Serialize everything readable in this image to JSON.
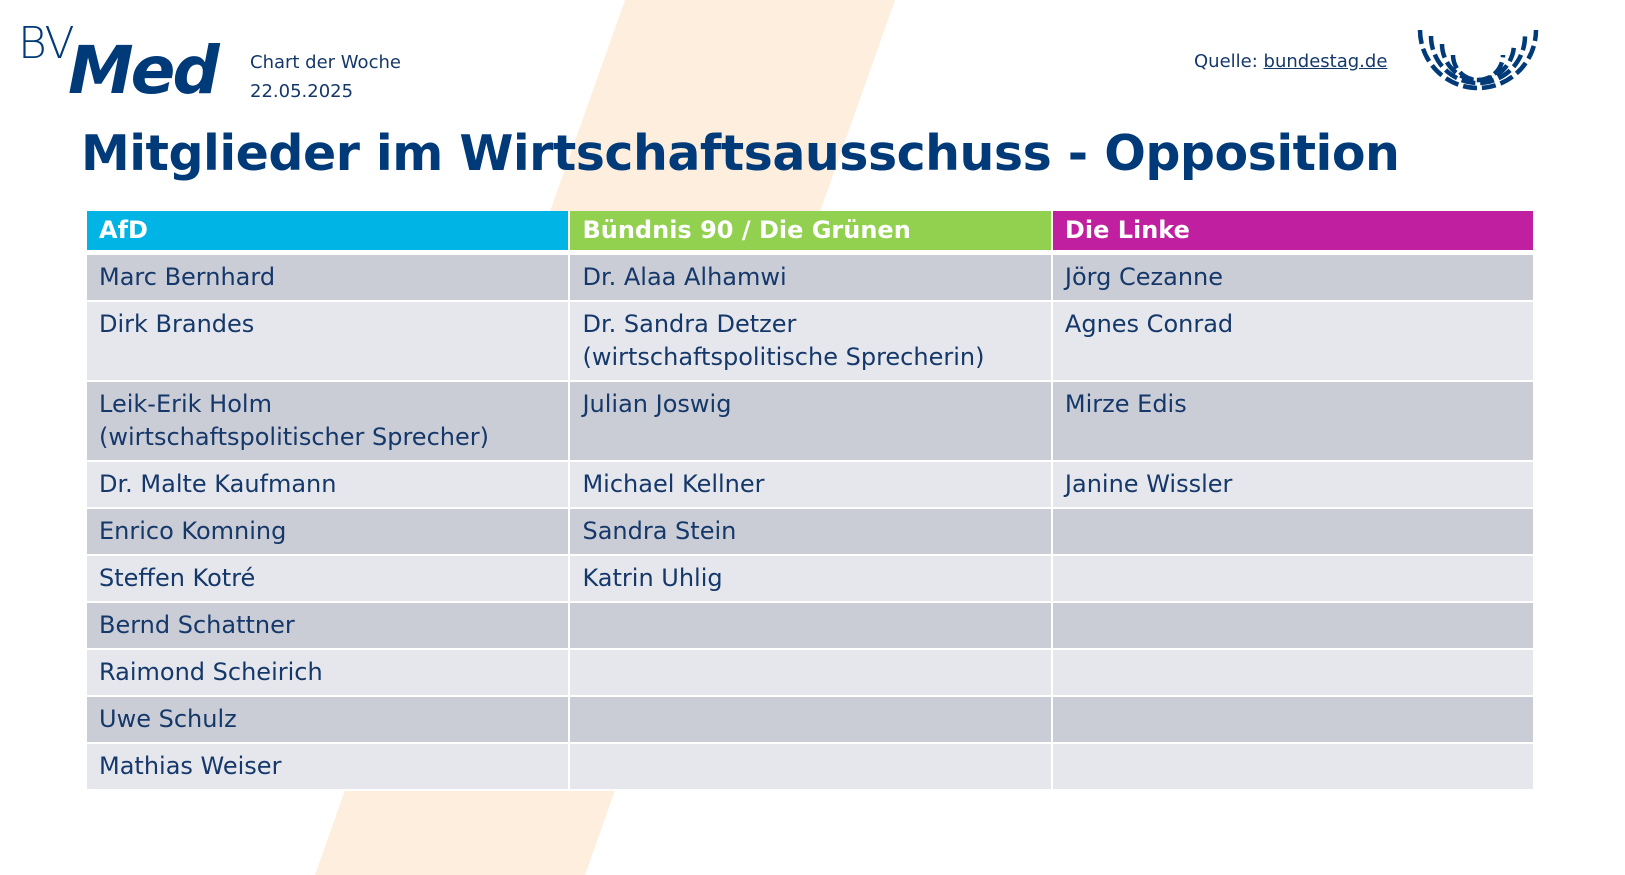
{
  "header": {
    "logo": "BVMed",
    "logo_bv": "BV",
    "logo_med": "Med",
    "series": "Chart der Woche",
    "date": "22.05.2025",
    "source_label": "Quelle:",
    "source_link": "bundestag.de"
  },
  "title": "Mitglieder im Wirtschaftsausschuss - Opposition",
  "colors": {
    "afd": "#00b4e6",
    "gruene": "#92d14f",
    "linke": "#c01fa0",
    "row_dark": "#cbcdd6",
    "row_light": "#e6e7ec",
    "accent_stripe": "#fdeedd"
  },
  "table": {
    "headers": [
      "AfD",
      "Bündnis 90 / Die Grünen",
      "Die Linke"
    ],
    "rows": [
      [
        "Marc Bernhard",
        "Dr. Alaa Alhamwi",
        "Jörg Cezanne"
      ],
      [
        "Dirk Brandes",
        "Dr. Sandra Detzer\n(wirtschaftspolitische Sprecherin)",
        "Agnes Conrad"
      ],
      [
        "Leik-Erik Holm\n(wirtschaftspolitischer Sprecher)",
        "Julian Joswig",
        "Mirze Edis"
      ],
      [
        "Dr. Malte Kaufmann",
        "Michael Kellner",
        "Janine Wissler"
      ],
      [
        "Enrico Komning",
        "Sandra Stein",
        ""
      ],
      [
        "Steffen Kotré",
        "Katrin Uhlig",
        ""
      ],
      [
        "Bernd Schattner",
        "",
        ""
      ],
      [
        "Raimond Scheirich",
        "",
        ""
      ],
      [
        "Uwe Schulz",
        "",
        ""
      ],
      [
        "Mathias Weiser",
        "",
        ""
      ]
    ]
  }
}
